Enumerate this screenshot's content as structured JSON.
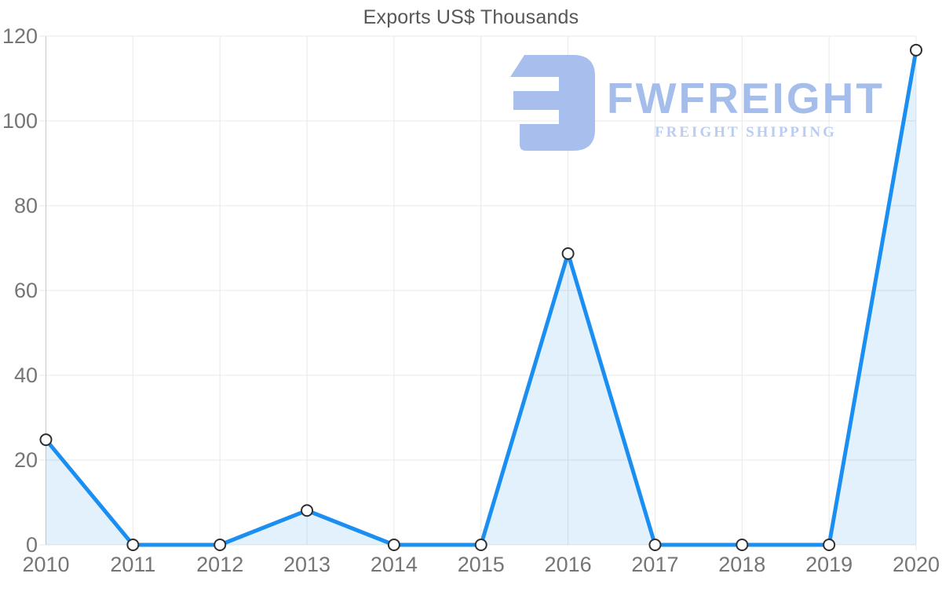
{
  "logo": {
    "wordmark": "FWFREIGHT",
    "tagline": "FREIGHT SHIPPING",
    "mark_color": "#a8bfed",
    "wordmark_color": "#a5bdeb",
    "tagline_color": "#b9cdf3"
  },
  "chart_data": {
    "type": "area",
    "title": "Exports US$ Thousands",
    "categories": [
      "2010",
      "2011",
      "2012",
      "2013",
      "2014",
      "2015",
      "2016",
      "2017",
      "2018",
      "2019",
      "2020"
    ],
    "values": [
      24.8,
      0,
      0,
      8.1,
      0,
      0,
      68.7,
      0,
      0,
      0,
      116.7
    ],
    "xlabel": "",
    "ylabel": "",
    "ylim": [
      0,
      120
    ],
    "yticks": [
      0,
      20,
      40,
      60,
      80,
      100,
      120
    ],
    "grid": true,
    "legend": false,
    "line_color": "#1b8ef2",
    "area_fill": "rgba(27,142,242,0.12)",
    "marker_fill": "#ffffff",
    "marker_stroke": "#2f2f2f",
    "grid_color": "#e8e8e8",
    "axis_color": "#c9c9c9",
    "tick_label_color": "#757575",
    "title_color": "#575757"
  }
}
